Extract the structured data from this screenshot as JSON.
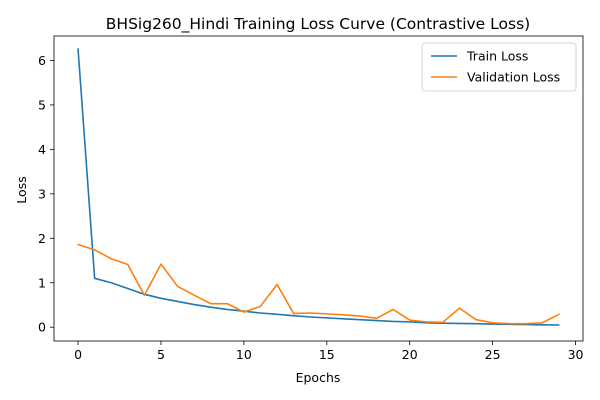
{
  "chart_data": {
    "type": "line",
    "title": "BHSig260_Hindi Training Loss Curve (Contrastive Loss)",
    "xlabel": "Epochs",
    "ylabel": "Loss",
    "xlim": [
      -1.45,
      30.45
    ],
    "ylim": [
      -0.31,
      6.55
    ],
    "xticks": [
      0,
      5,
      10,
      15,
      20,
      25,
      30
    ],
    "yticks": [
      0,
      1,
      2,
      3,
      4,
      5,
      6
    ],
    "grid": false,
    "legend_position": "top-right",
    "x": [
      0,
      1,
      2,
      3,
      4,
      5,
      6,
      7,
      8,
      9,
      10,
      11,
      12,
      13,
      14,
      15,
      16,
      17,
      18,
      19,
      20,
      21,
      22,
      23,
      24,
      25,
      26,
      27,
      28,
      29
    ],
    "series": [
      {
        "name": "Train Loss",
        "color": "#1f77b4",
        "values": [
          6.26,
          1.1,
          1.0,
          0.87,
          0.74,
          0.65,
          0.58,
          0.51,
          0.45,
          0.4,
          0.36,
          0.32,
          0.29,
          0.26,
          0.23,
          0.21,
          0.19,
          0.17,
          0.15,
          0.13,
          0.12,
          0.1,
          0.09,
          0.085,
          0.08,
          0.07,
          0.065,
          0.06,
          0.055,
          0.05
        ]
      },
      {
        "name": "Validation Loss",
        "color": "#ff7f0e",
        "values": [
          1.86,
          1.74,
          1.54,
          1.41,
          0.72,
          1.42,
          0.92,
          0.72,
          0.53,
          0.53,
          0.34,
          0.47,
          0.96,
          0.31,
          0.32,
          0.3,
          0.28,
          0.25,
          0.2,
          0.4,
          0.16,
          0.12,
          0.11,
          0.43,
          0.17,
          0.1,
          0.08,
          0.08,
          0.1,
          0.29
        ]
      }
    ]
  }
}
